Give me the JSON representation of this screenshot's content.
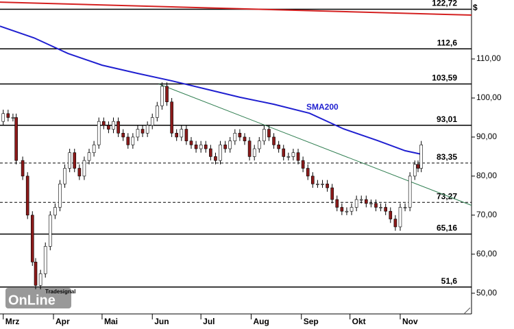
{
  "chart_data": {
    "type": "candlestick",
    "unit": "$",
    "x": [
      0,
      3,
      6,
      8,
      12,
      15,
      18,
      20,
      23,
      26,
      29,
      32,
      35,
      38,
      41,
      44,
      47,
      50,
      53,
      56,
      59,
      62,
      65,
      68,
      71,
      74,
      77,
      80,
      83,
      86,
      89,
      92,
      95,
      98,
      101,
      104,
      107,
      110,
      113,
      116,
      119,
      122,
      125,
      128,
      131,
      134,
      137,
      140,
      143,
      146,
      149,
      152,
      155,
      158,
      161,
      164,
      167,
      170,
      173,
      176,
      179,
      182,
      185,
      188,
      191,
      194,
      197,
      200,
      203,
      206,
      209,
      212,
      215,
      218,
      221,
      224,
      227,
      230,
      233,
      236,
      239,
      242,
      245,
      248,
      251,
      254,
      256,
      258
    ],
    "open": [
      94,
      96,
      95,
      95,
      84,
      80,
      70,
      58,
      52,
      55,
      62,
      70,
      72,
      78,
      82,
      86,
      82,
      80,
      84,
      86,
      88,
      94,
      93,
      92,
      94,
      91,
      90,
      88,
      90,
      92,
      91,
      93,
      95,
      98,
      103,
      99,
      91,
      90,
      92,
      89,
      88,
      87,
      88,
      87,
      85,
      84,
      88,
      87,
      89,
      91,
      90,
      89,
      85,
      87,
      89,
      92,
      90,
      88,
      87,
      85,
      85,
      86,
      84,
      82,
      80,
      78,
      78,
      78,
      77,
      74,
      72,
      71,
      71,
      72,
      74,
      74,
      73,
      73,
      72,
      72,
      71,
      69,
      67,
      72,
      72,
      80,
      83,
      82
    ],
    "high": [
      97,
      97,
      96,
      96,
      85,
      81,
      71,
      59,
      56,
      63,
      71,
      73,
      79,
      83,
      87,
      87,
      83,
      85,
      87,
      89,
      95,
      95,
      94,
      95,
      95,
      92,
      91,
      91,
      93,
      93,
      94,
      96,
      99,
      104,
      104,
      100,
      92,
      93,
      93,
      90,
      89,
      89,
      89,
      88,
      86,
      89,
      89,
      90,
      92,
      92,
      91,
      90,
      88,
      90,
      93,
      93,
      91,
      89,
      88,
      86,
      87,
      87,
      85,
      83,
      81,
      79,
      79,
      79,
      78,
      75,
      73,
      72,
      73,
      75,
      75,
      75,
      74,
      74,
      73,
      73,
      72,
      70,
      73,
      73,
      81,
      84,
      84,
      89
    ],
    "low": [
      93,
      94,
      94,
      83,
      79,
      69,
      57,
      51,
      51,
      54,
      61,
      69,
      71,
      77,
      81,
      81,
      79,
      79,
      83,
      85,
      87,
      92,
      91,
      91,
      90,
      89,
      87,
      87,
      89,
      90,
      90,
      92,
      94,
      97,
      98,
      90,
      89,
      89,
      88,
      87,
      86,
      86,
      86,
      84,
      83,
      83,
      86,
      86,
      88,
      89,
      88,
      84,
      84,
      86,
      88,
      89,
      87,
      86,
      84,
      84,
      84,
      83,
      81,
      79,
      77,
      77,
      77,
      76,
      73,
      71,
      70,
      70,
      70,
      71,
      73,
      72,
      72,
      71,
      71,
      70,
      68,
      66,
      66,
      71,
      71,
      79,
      81,
      81
    ],
    "close": [
      96,
      95,
      95,
      84,
      80,
      70,
      58,
      52,
      55,
      62,
      70,
      72,
      78,
      82,
      86,
      82,
      80,
      84,
      86,
      88,
      94,
      93,
      92,
      94,
      91,
      90,
      88,
      90,
      92,
      91,
      93,
      95,
      98,
      103,
      99,
      91,
      90,
      92,
      89,
      88,
      87,
      88,
      87,
      85,
      84,
      88,
      87,
      89,
      91,
      90,
      89,
      85,
      87,
      89,
      92,
      90,
      88,
      87,
      85,
      85,
      86,
      84,
      82,
      80,
      78,
      78,
      78,
      77,
      74,
      72,
      71,
      71,
      72,
      74,
      74,
      73,
      73,
      72,
      72,
      71,
      69,
      67,
      72,
      72,
      80,
      83,
      82,
      88
    ],
    "up_color": "#ffffff",
    "down_color": "#8b1a1a",
    "lines": [
      {
        "name": "SMA200",
        "color": "#1f1fd0",
        "x": [
          -2,
          19,
          40,
          61,
          83,
          104,
          125,
          146,
          167,
          189,
          210,
          231,
          248,
          258
        ],
        "values": [
          118.4,
          115.4,
          111.4,
          108.4,
          106.3,
          104.4,
          102.3,
          100.2,
          98.4,
          96.1,
          92.1,
          89.1,
          86.5,
          85.6
        ]
      },
      {
        "color": "#d42020",
        "x": [
          -2,
          289
        ],
        "values": [
          124.56,
          121.23
        ]
      },
      {
        "color": "#2e7d4f",
        "x": [
          96,
          289
        ],
        "values": [
          103.59,
          72.5
        ]
      }
    ],
    "levels": [
      {
        "value": 122.72,
        "label": "122,72",
        "style": "solid"
      },
      {
        "value": 112.6,
        "label": "112,6",
        "style": "solid"
      },
      {
        "value": 103.59,
        "label": "103,59",
        "style": "solid"
      },
      {
        "value": 93.01,
        "label": "93,01",
        "style": "solid"
      },
      {
        "value": 83.35,
        "label": "83,35",
        "style": "dashed"
      },
      {
        "value": 73.27,
        "label": "73,27",
        "style": "dashed"
      },
      {
        "value": 65.16,
        "label": "65,16",
        "style": "solid"
      },
      {
        "value": 51.6,
        "label": "51,6",
        "style": "solid"
      }
    ],
    "xlim": [
      -2,
      289
    ],
    "ylim": [
      44.7,
      125.1
    ],
    "xticks": [
      {
        "value": 0,
        "label": "Mrz"
      },
      {
        "value": 31,
        "label": "Apr"
      },
      {
        "value": 61,
        "label": "Mai"
      },
      {
        "value": 92,
        "label": "Jun"
      },
      {
        "value": 122,
        "label": "Jul"
      },
      {
        "value": 153,
        "label": "Aug"
      },
      {
        "value": 184,
        "label": "Sep"
      },
      {
        "value": 214,
        "label": "Okt"
      },
      {
        "value": 245,
        "label": "Nov"
      }
    ],
    "yticks": [
      {
        "value": 50,
        "label": "50,00"
      },
      {
        "value": 60,
        "label": "60,00"
      },
      {
        "value": 70,
        "label": "70,00"
      },
      {
        "value": 80,
        "label": "80,00"
      },
      {
        "value": 90,
        "label": "90,00"
      },
      {
        "value": 100,
        "label": "100,00"
      },
      {
        "value": 110,
        "label": "110,00"
      }
    ]
  },
  "logo": {
    "brand": "Tradesignal",
    "name": "OnLine"
  }
}
